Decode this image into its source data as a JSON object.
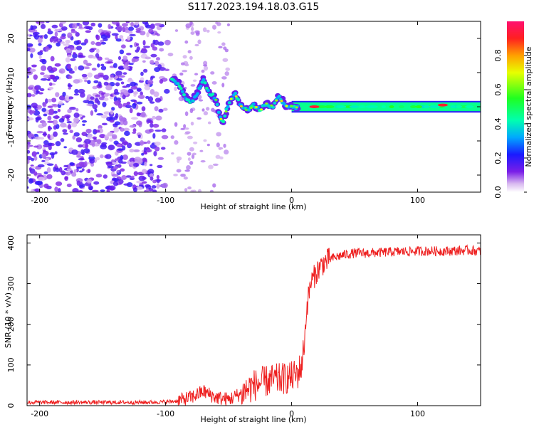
{
  "title": "S117.2023.194.18.03.G15",
  "chart_data": [
    {
      "type": "heatmap",
      "xlabel": "Height of straight line (km)",
      "ylabel": "Frequency (Hz)",
      "xlim": [
        -210,
        150
      ],
      "ylim": [
        -25,
        25
      ],
      "xticks": [
        -200,
        -100,
        0,
        100
      ],
      "yticks": [
        -20,
        -10,
        0,
        10,
        20
      ],
      "colorbar": {
        "label": "Normalized spectral amplitude",
        "range": [
          0.0,
          1.0
        ],
        "ticks": [
          0.0,
          0.2,
          0.4,
          0.6,
          0.8
        ],
        "tick_labels": [
          "0.0",
          "0.2",
          "0.4",
          "0.6",
          "0.8"
        ]
      },
      "scatter_region": {
        "x": [
          -210,
          -95
        ],
        "y": [
          -25,
          25
        ],
        "level": 0.2
      },
      "trace": {
        "x": [
          -95,
          -90,
          -85,
          -80,
          -75,
          -70,
          -65,
          -60,
          -55,
          -50,
          -45,
          -40,
          -35,
          -30,
          -25,
          -20,
          -15,
          -10,
          -5,
          0,
          10,
          20,
          40,
          60,
          80,
          100,
          120,
          140,
          150
        ],
        "y": [
          8,
          7,
          3,
          1.5,
          4,
          8,
          4,
          2,
          -5,
          1,
          4,
          0,
          -1,
          0.5,
          -1,
          1,
          0,
          3,
          0.5,
          0,
          0,
          0,
          0,
          0,
          0,
          0,
          0.5,
          0.8,
          0.5
        ]
      },
      "band": {
        "x": [
          0,
          150
        ],
        "y_center": 0,
        "half_width": 1.5,
        "level": 0.45
      },
      "peaks": [
        {
          "x": 18,
          "y": 0
        },
        {
          "x": 120,
          "y": 0.5
        }
      ]
    },
    {
      "type": "line",
      "xlabel": "Height of straight line (km)",
      "ylabel": "SNR (10 * v/v)",
      "xlim": [
        -210,
        150
      ],
      "ylim": [
        0,
        420
      ],
      "xticks": [
        -200,
        -100,
        0,
        100
      ],
      "yticks": [
        0,
        100,
        200,
        300,
        400
      ],
      "series": [
        {
          "color": "#ee2020",
          "x": [
            -210,
            -180,
            -150,
            -120,
            -100,
            -90,
            -80,
            -70,
            -60,
            -50,
            -40,
            -30,
            -20,
            -10,
            0,
            5,
            8,
            10,
            12,
            15,
            20,
            25,
            30,
            40,
            50,
            60,
            80,
            100,
            120,
            140,
            150
          ],
          "y": [
            8,
            8,
            8,
            8,
            9,
            12,
            20,
            35,
            20,
            15,
            30,
            50,
            60,
            65,
            70,
            80,
            100,
            150,
            240,
            300,
            330,
            350,
            360,
            370,
            375,
            375,
            378,
            380,
            380,
            382,
            380
          ]
        }
      ]
    }
  ]
}
